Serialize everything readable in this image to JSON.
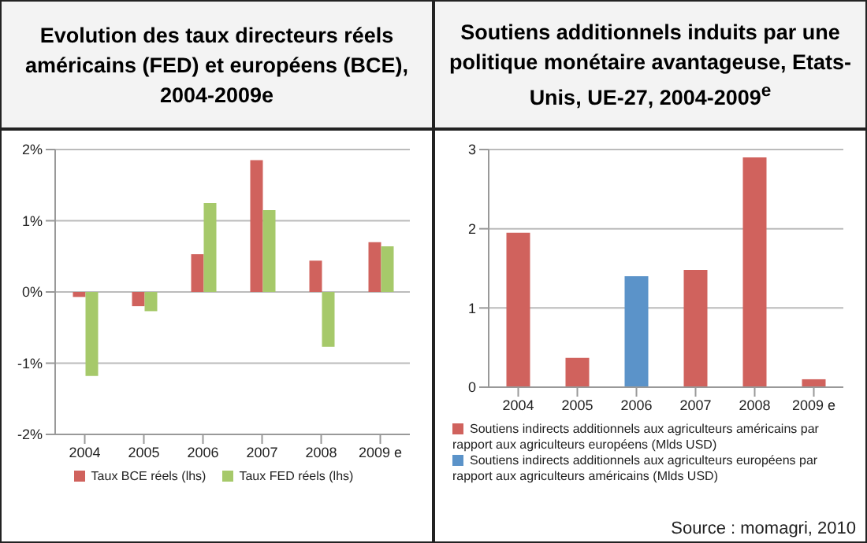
{
  "chart_data": [
    {
      "type": "bar",
      "title": "Evolution des taux directeurs réels américains (FED) et européens (BCE), 2004-2009e",
      "categories": [
        "2004",
        "2005",
        "2006",
        "2007",
        "2008",
        "2009 e"
      ],
      "series": [
        {
          "name": "Taux BCE réels (lhs)",
          "color": "#d0625d",
          "values": [
            -0.07,
            -0.2,
            0.53,
            1.85,
            0.44,
            0.7
          ]
        },
        {
          "name": "Taux FED réels (lhs)",
          "color": "#a6c96a",
          "values": [
            -1.18,
            -0.27,
            1.25,
            1.15,
            -0.77,
            0.64
          ]
        }
      ],
      "ylim": [
        -2,
        2
      ],
      "yticks": [
        {
          "value": -2,
          "label": "-2%"
        },
        {
          "value": -1,
          "label": "-1%"
        },
        {
          "value": 0,
          "label": "0%"
        },
        {
          "value": 1,
          "label": "1%"
        },
        {
          "value": 2,
          "label": "2%"
        }
      ],
      "grid": "y",
      "legend": "bottom"
    },
    {
      "type": "bar",
      "title": "Soutiens additionnels induits par une politique monétaire avantageuse, Etats-Unis, UE-27, 2004-2009$^{e}$",
      "categories": [
        "2004",
        "2005",
        "2006",
        "2007",
        "2008",
        "2009 e"
      ],
      "series": [
        {
          "name": "Soutiens indirects additionnels aux agriculteurs américains par rapport aux agriculteurs européens (Mlds USD)",
          "color": "#d0625d",
          "values": [
            1.95,
            0.37,
            null,
            1.48,
            2.9,
            0.1
          ]
        },
        {
          "name": "Soutiens indirects additionnels aux agriculteurs européens par rapport aux agriculteurs américains (Mlds USD)",
          "color": "#5b93c9",
          "values": [
            null,
            null,
            1.4,
            null,
            null,
            null
          ]
        }
      ],
      "ylim": [
        0,
        3
      ],
      "yticks": [
        0,
        1,
        2,
        3
      ],
      "grid": "y",
      "legend": "bottom",
      "stacked": true,
      "annotations": [
        "Source : momagri, 2010"
      ]
    }
  ]
}
